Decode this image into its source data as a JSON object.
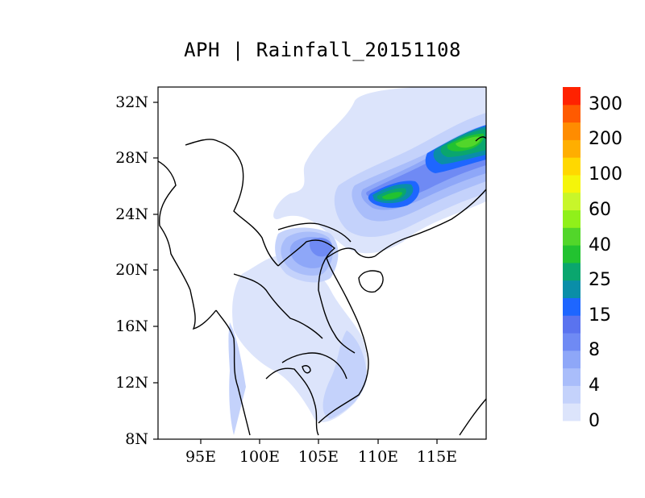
{
  "title": "APH | Rainfall_20151108",
  "axes": {
    "y_ticks": [
      "32N",
      "28N",
      "24N",
      "20N",
      "16N",
      "12N",
      "8N"
    ],
    "x_ticks": [
      "95E",
      "100E",
      "105E",
      "110E",
      "115E"
    ]
  },
  "colorbar": {
    "levels": [
      "0",
      "4",
      "8",
      "15",
      "25",
      "40",
      "60",
      "100",
      "200",
      "300"
    ],
    "colors": [
      "#dce4fb",
      "#c4d2fb",
      "#a9bdfa",
      "#8ea7f8",
      "#6f8af4",
      "#5a73ef",
      "#1e66ff",
      "#0a8ea8",
      "#0aa66e",
      "#22c230",
      "#52d62a",
      "#90f01a",
      "#c8f62a",
      "#f5f50a",
      "#ffd800",
      "#ffae00",
      "#ff8c00",
      "#ff5a00",
      "#ff2200"
    ]
  },
  "map_data": {
    "domain": {
      "lon": [
        91.5,
        119
      ],
      "lat": [
        8,
        33
      ]
    },
    "rain_regions": [
      {
        "name": "southeast-china-band",
        "level": "8-40"
      },
      {
        "name": "northern-vietnam",
        "level": "8-15"
      },
      {
        "name": "southern-vietnam-coast",
        "level": "4-15"
      }
    ]
  }
}
